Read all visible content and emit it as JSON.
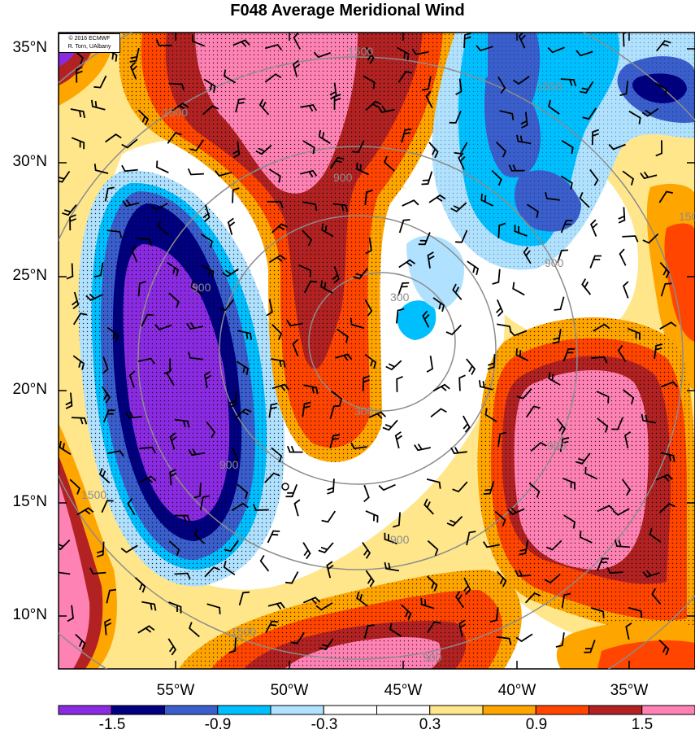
{
  "title": "F048 Average Meridional Wind",
  "copyright": [
    "© 2016 ECMWF",
    "R. Torn, UAlbany"
  ],
  "lat_labels": [
    "35°N",
    "30°N",
    "25°N",
    "20°N",
    "15°N",
    "10°N"
  ],
  "lon_labels": [
    "55°W",
    "50°W",
    "45°W",
    "40°W",
    "35°W"
  ],
  "colorbar": {
    "colors": [
      "#8a2be2",
      "#000080",
      "#3a5fcd",
      "#00bfff",
      "#b0e2ff",
      "#ffffff",
      "#ffffff",
      "#ffe68a",
      "#ffa500",
      "#ff4500",
      "#b22222",
      "#ff82b4"
    ],
    "labels": [
      "-1.5",
      "-0.9",
      "-0.3",
      "0.3",
      "0.9",
      "1.5"
    ]
  },
  "contour_labels": [
    "1500",
    "1500",
    "1500",
    "1500",
    "1500",
    "1500",
    "900",
    "900",
    "900",
    "900",
    "900",
    "900",
    "900",
    "300",
    "300"
  ]
}
